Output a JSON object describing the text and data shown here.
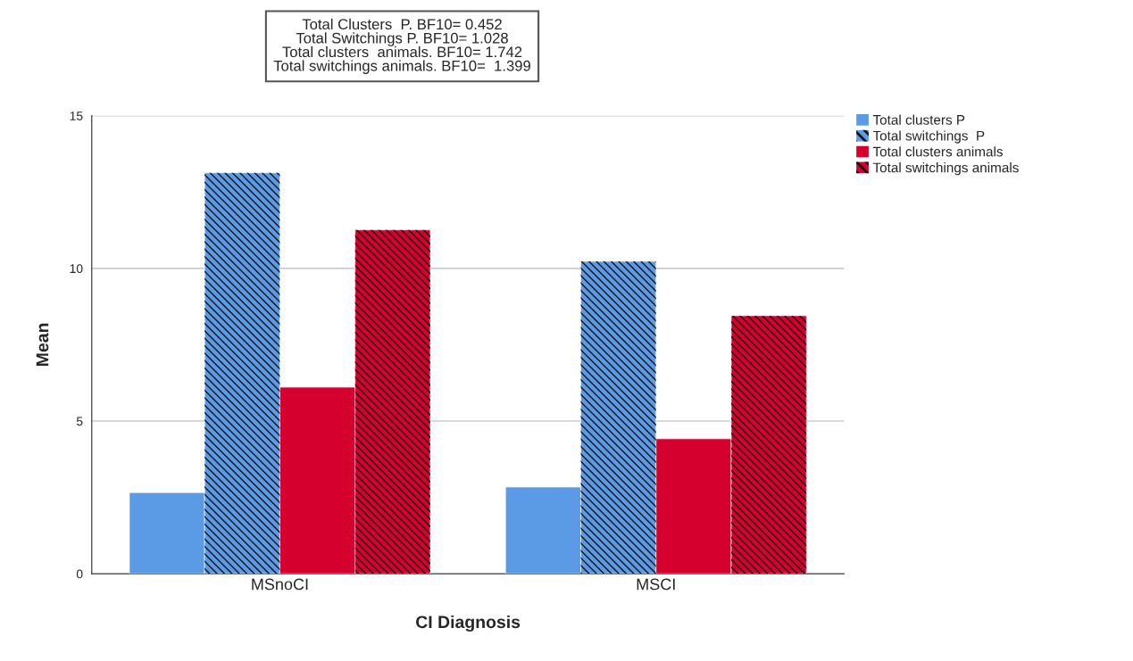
{
  "chart_data": {
    "type": "bar",
    "xlabel": "CI Diagnosis",
    "ylabel": "Mean",
    "categories": [
      "MSnoCI",
      "MSCI"
    ],
    "series": [
      {
        "name": "Total clusters P",
        "color": "#5b9be6",
        "values": [
          2.66,
          2.84
        ]
      },
      {
        "name": "Total switchings  P",
        "color": "#5b9be6",
        "values": [
          13.13,
          10.23
        ]
      },
      {
        "name": "Total clusters animals",
        "color": "#d6002e",
        "values": [
          6.11,
          4.42
        ]
      },
      {
        "name": "Total switchings animals",
        "color": "#d6002e",
        "values": [
          11.26,
          8.45
        ]
      }
    ],
    "ylim": [
      0,
      15
    ],
    "yticks": [
      0,
      5,
      10,
      15
    ],
    "grid": "y",
    "legend": "top right",
    "annotations": [
      "Total Clusters  P. BF10= 0.452\nTotal Switchings P. BF10= 1.028\nTotal clusters  animals. BF10= 1.742\nTotal switchings animals. BF10=  1.399"
    ]
  }
}
